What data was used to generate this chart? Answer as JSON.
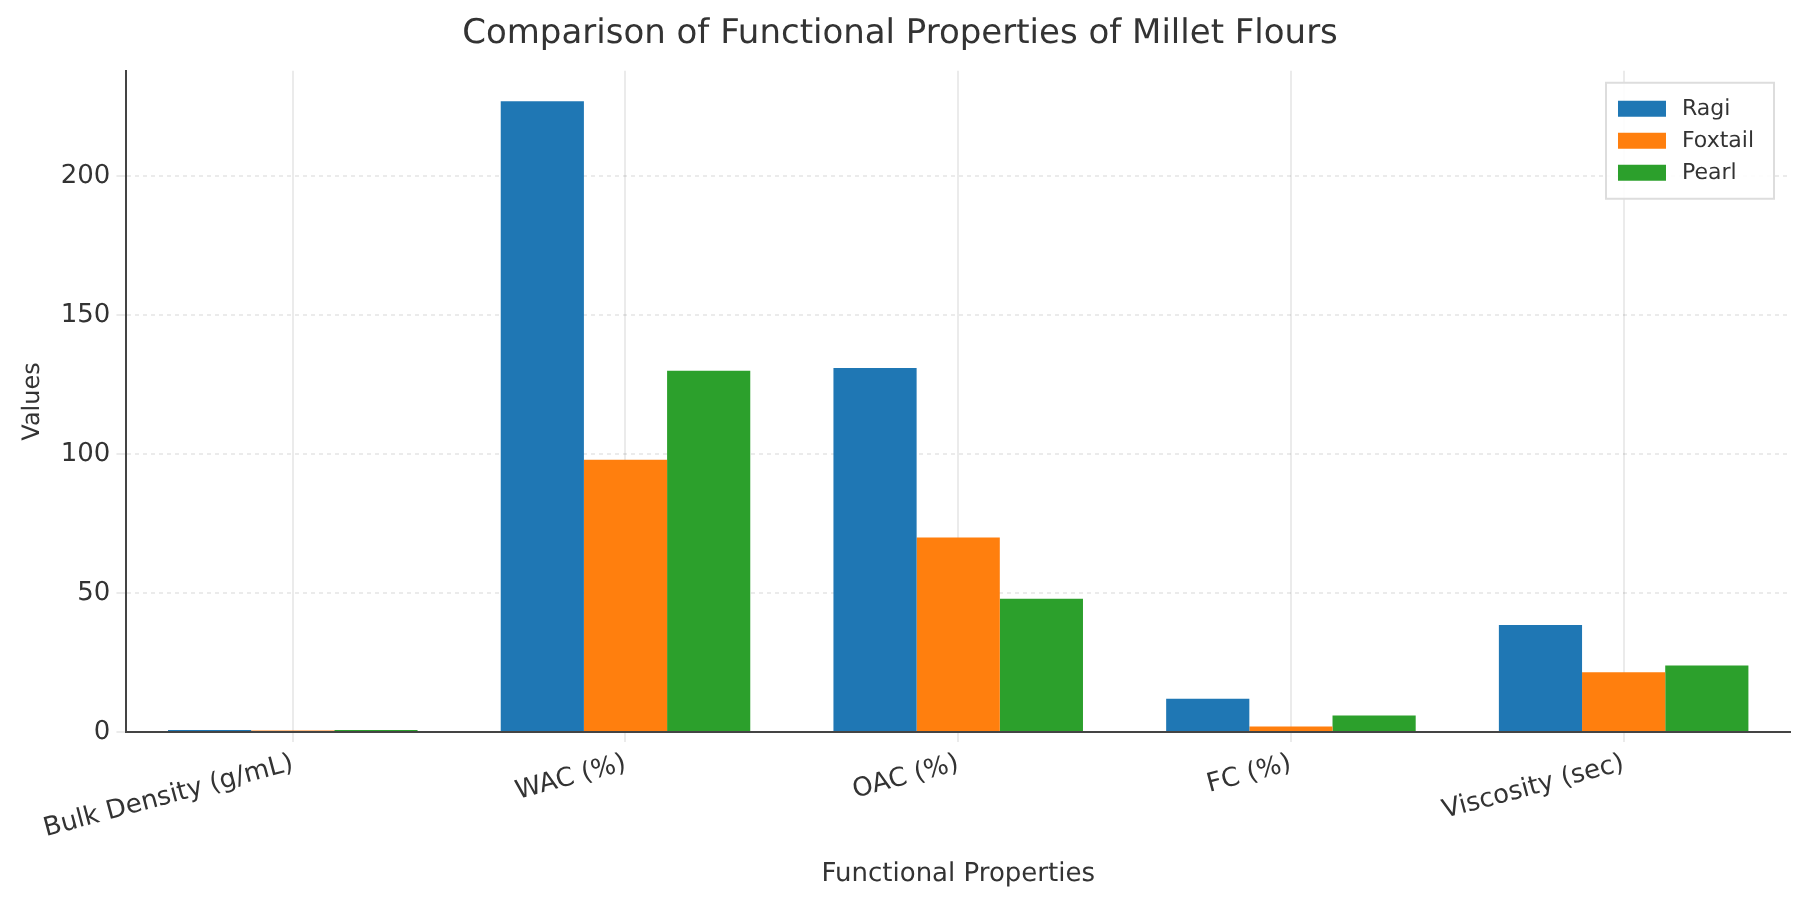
{
  "chart_data": {
    "type": "bar",
    "title": "Comparison of Functional Properties of Millet Flours",
    "xlabel": "Functional Properties",
    "ylabel": "Values",
    "categories": [
      "Bulk Density (g/mL)",
      "WAC (%)",
      "OAC (%)",
      "FC (%)",
      "Viscosity (sec)"
    ],
    "series": [
      {
        "name": "Ragi",
        "color": "#1f77b4",
        "values": [
          0.7,
          227,
          131,
          12,
          38.5
        ]
      },
      {
        "name": "Foxtail",
        "color": "#ff7f0e",
        "values": [
          0.6,
          98,
          70,
          2,
          21.5
        ]
      },
      {
        "name": "Pearl",
        "color": "#2ca02c",
        "values": [
          0.7,
          130,
          48,
          6,
          24
        ]
      }
    ],
    "ylim": [
      0,
      238
    ],
    "yticks": [
      0,
      50,
      100,
      150,
      200
    ],
    "grid": true,
    "legend": "top right"
  }
}
